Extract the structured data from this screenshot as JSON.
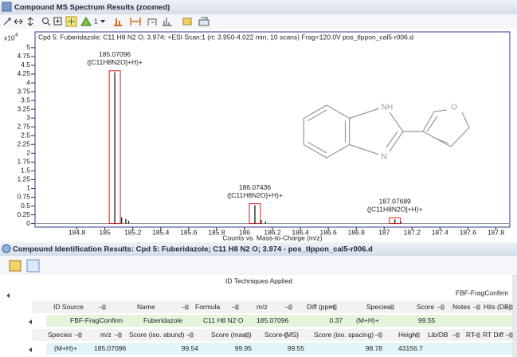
{
  "spectrum_panel": {
    "title": "Compound MS Spectrum Results (zoomed)",
    "toolbar_count": "1"
  },
  "chart_data": {
    "type": "spectrum",
    "title": "Cpd 5: Fuberidazole; C11 H8 N2 O; 3.974: +ESI Scan:1 (rt: 3.950-4.022 min, 10 scans) Frag=120.0V pos_tlppon_cal5-r006.d",
    "y_scale": "x10",
    "y_scale_exponent": "4",
    "x_label": "Counts vs. Mass-to-Charge (m/z)",
    "xlim": [
      184.5,
      187.9
    ],
    "ylim": [
      -0.1,
      5.45
    ],
    "xticks": [
      184.8,
      185,
      185.2,
      185.4,
      185.6,
      185.8,
      186,
      186.2,
      186.4,
      186.6,
      186.8,
      187,
      187.2,
      187.4,
      187.6,
      187.8
    ],
    "yticks": [
      0,
      0.25,
      0.5,
      0.75,
      1,
      1.25,
      1.5,
      1.75,
      2,
      2.25,
      2.5,
      2.75,
      3,
      3.25,
      3.5,
      3.75,
      4,
      4.25,
      4.5,
      4.75,
      5
    ],
    "color": "#1a1a1a",
    "highlight_color": "#d42020",
    "x": [
      185.07096,
      185.12,
      185.15,
      185.17,
      186.07436,
      186.12,
      186.15,
      187.07689,
      187.12
    ],
    "values": [
      4.3,
      0.18,
      0.13,
      0.08,
      0.52,
      0.1,
      0.06,
      0.12,
      0.05
    ],
    "labels": [
      "([C11H8N2O]+H)+",
      null,
      null,
      null,
      "([C11H8N2O]+H)+",
      null,
      null,
      "([C11H8N2O]+H)+",
      null
    ]
  },
  "structure": {
    "atoms": [
      "NH",
      "N",
      "O"
    ]
  },
  "identification_panel": {
    "title": "Compound Identification Results: Cpd 5: Fuberidazole; C11 H8 N2 O; 3.974 - pos_tlppon_cal5-r006.d",
    "techniques_header": "ID Techniques Applied",
    "technique": "FBF-FragConfirm",
    "result_columns": [
      "ID Source",
      "Name",
      "Formula",
      "m/z",
      "Diff (ppm)",
      "Species",
      "Score",
      "Notes",
      "Hits (DB)"
    ],
    "result_row": [
      "FBF-FragConfirm",
      "Fuberidazole",
      "C11 H8 N2 O",
      185.07096,
      0.37,
      "(M+H)+",
      99.55
    ],
    "species_columns": [
      "Species",
      "m/z",
      "Score (iso. abund)",
      "Score (mass)",
      "Score (MS)",
      "Score (iso. spacing)",
      "Height",
      "Lib/DB",
      "RT",
      "RT Diff"
    ],
    "species_row": [
      "(M+H)+",
      185.07096,
      99.54,
      99.95,
      99.55,
      98.78,
      43156.7
    ]
  }
}
